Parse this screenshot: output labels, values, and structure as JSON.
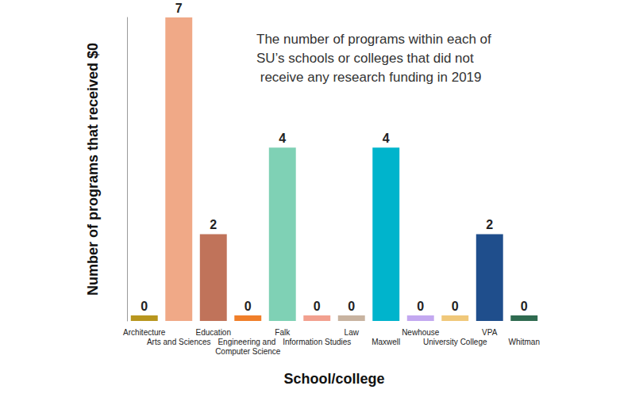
{
  "chart_data": {
    "type": "bar",
    "title": "The number of programs within each of SU’s schools or colleges that did not receive any research funding in 2019",
    "x_label": "School/college",
    "y_label": "Number of programs that received $0",
    "categories": [
      "Architecture",
      "Arts and Sciences",
      "Education",
      "Engineering and Computer Science",
      "Falk",
      "Information Studies",
      "Law",
      "Maxwell",
      "Newhouse",
      "University College",
      "VPA",
      "Whitman"
    ],
    "values": [
      0,
      7,
      2,
      0,
      4,
      0,
      0,
      4,
      0,
      0,
      2,
      0
    ],
    "colors": [
      "#b8961e",
      "#f0a987",
      "#c0735a",
      "#f07f2a",
      "#7fd1b5",
      "#f2a08f",
      "#c8b3a0",
      "#00b4cc",
      "#c3a8f0",
      "#f0c87a",
      "#1f4e8c",
      "#2f6b50"
    ],
    "ylim": [
      0,
      7
    ],
    "grid": false,
    "data_labels": true,
    "tick_labels": "x"
  }
}
